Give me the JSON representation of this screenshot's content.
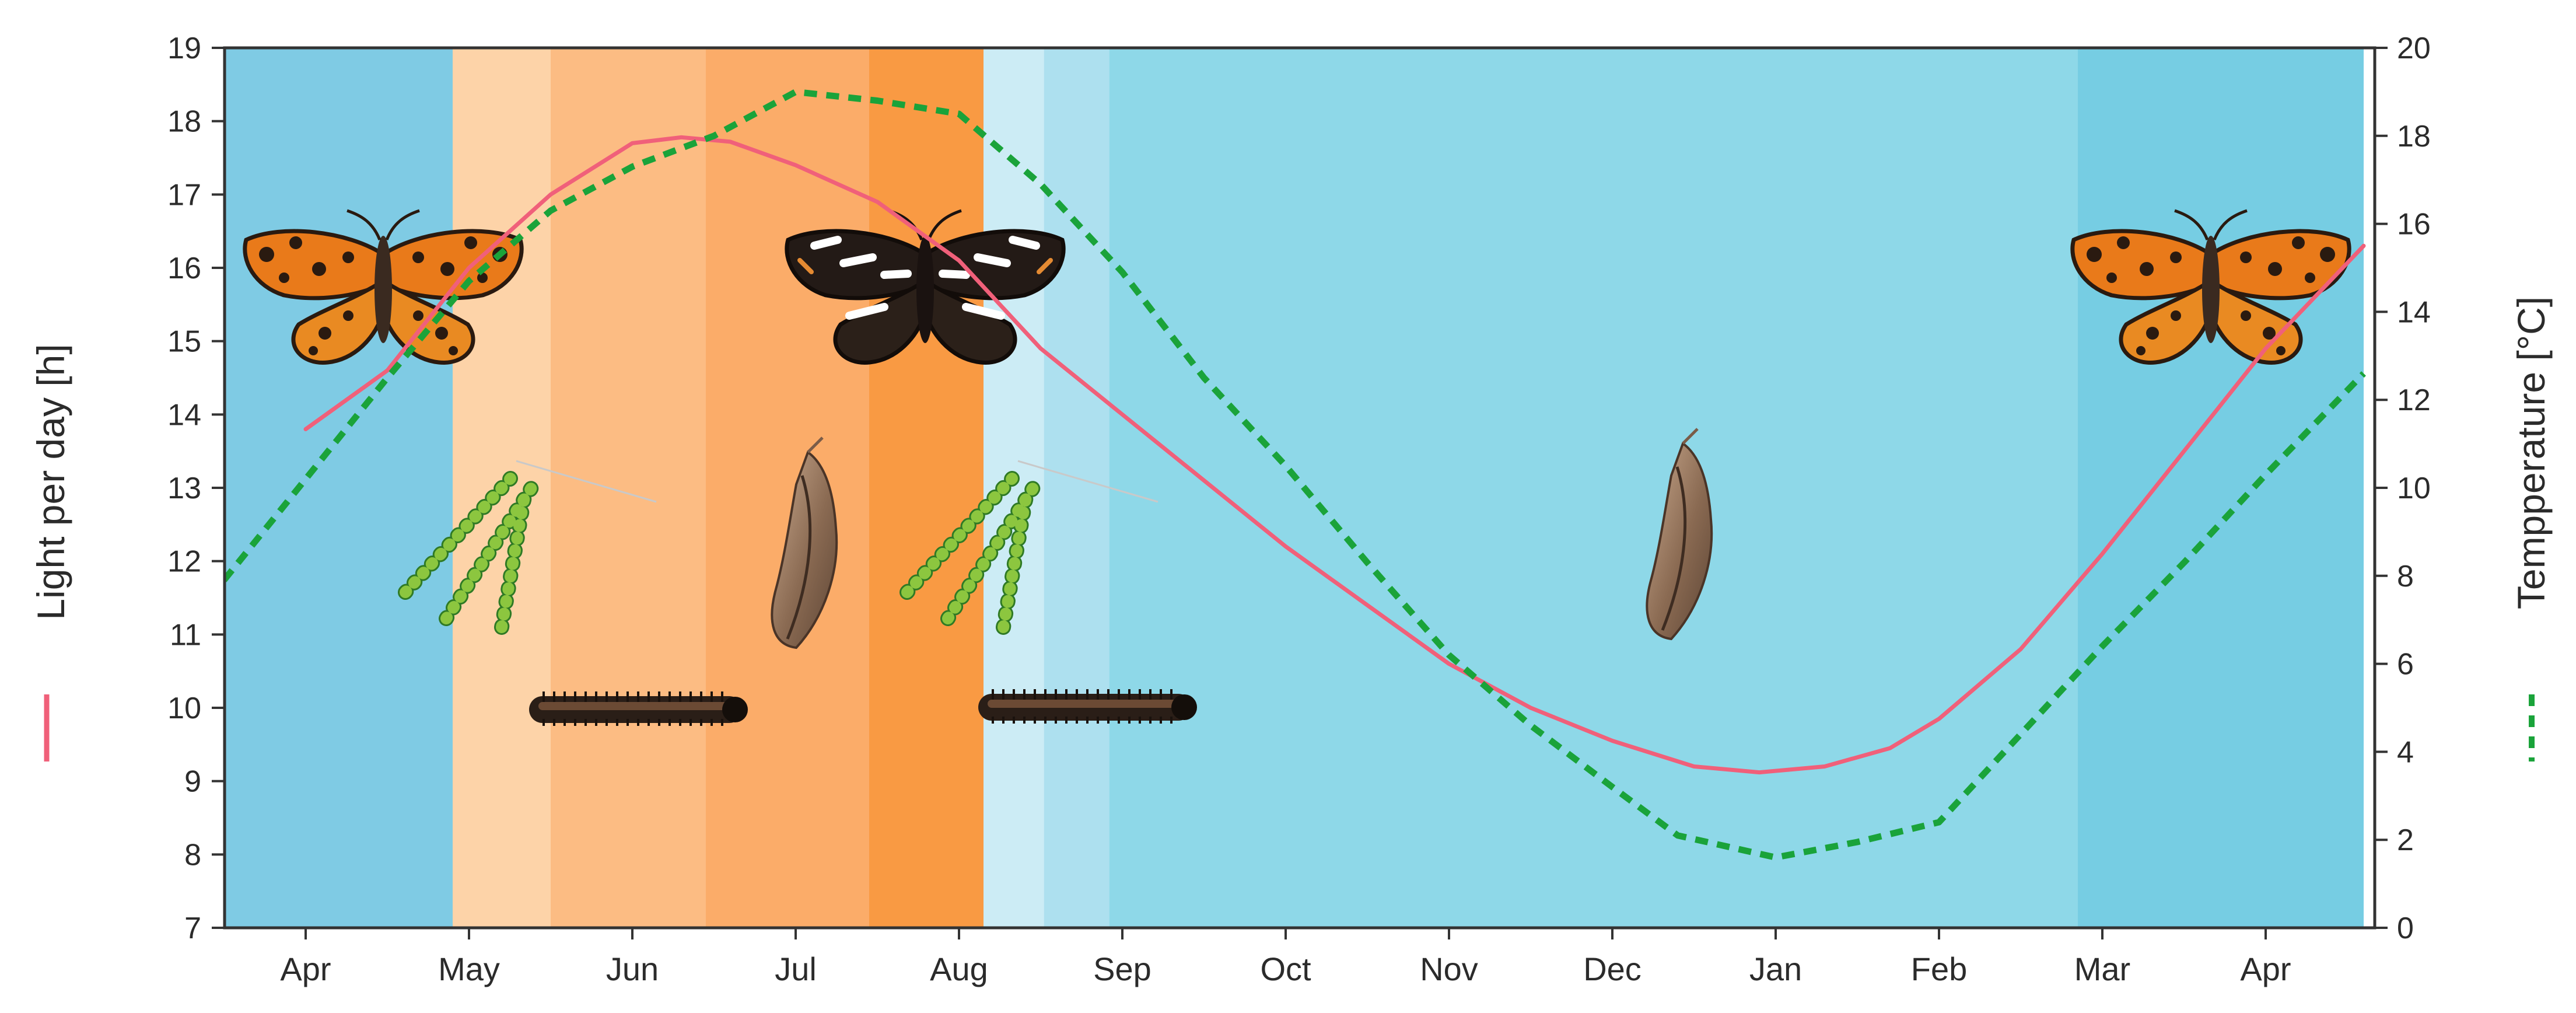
{
  "chart_data": {
    "type": "line",
    "x_categories": [
      "Apr",
      "May",
      "Jun",
      "Jul",
      "Aug",
      "Sep",
      "Oct",
      "Nov",
      "Dec",
      "Jan",
      "Feb",
      "Mar",
      "Apr"
    ],
    "ylabel": "Light per day [h]",
    "ylim": [
      7,
      19
    ],
    "yticks": [
      7,
      8,
      9,
      10,
      11,
      12,
      13,
      14,
      15,
      16,
      17,
      18,
      19
    ],
    "y2label": "Tempperature [°C]",
    "y2lim": [
      0,
      20
    ],
    "y2ticks": [
      0,
      2,
      4,
      6,
      8,
      10,
      12,
      14,
      16,
      18,
      20
    ],
    "series": [
      {
        "axis": "left",
        "color": "#f0607a",
        "style": "solid",
        "points": [
          {
            "x": 0.0,
            "y": 13.8
          },
          {
            "x": 0.5,
            "y": 14.6
          },
          {
            "x": 1.0,
            "y": 16.0
          },
          {
            "x": 1.5,
            "y": 17.0
          },
          {
            "x": 2.0,
            "y": 17.7
          },
          {
            "x": 2.3,
            "y": 17.78
          },
          {
            "x": 2.6,
            "y": 17.72
          },
          {
            "x": 3.0,
            "y": 17.4
          },
          {
            "x": 3.5,
            "y": 16.9
          },
          {
            "x": 4.0,
            "y": 16.1
          },
          {
            "x": 4.5,
            "y": 14.9
          },
          {
            "x": 5.0,
            "y": 14.0
          },
          {
            "x": 5.5,
            "y": 13.1
          },
          {
            "x": 6.0,
            "y": 12.2
          },
          {
            "x": 6.5,
            "y": 11.4
          },
          {
            "x": 7.0,
            "y": 10.6
          },
          {
            "x": 7.5,
            "y": 10.0
          },
          {
            "x": 8.0,
            "y": 9.55
          },
          {
            "x": 8.5,
            "y": 9.2
          },
          {
            "x": 8.9,
            "y": 9.12
          },
          {
            "x": 9.3,
            "y": 9.2
          },
          {
            "x": 9.7,
            "y": 9.45
          },
          {
            "x": 10.0,
            "y": 9.85
          },
          {
            "x": 10.5,
            "y": 10.8
          },
          {
            "x": 11.0,
            "y": 12.1
          },
          {
            "x": 11.5,
            "y": 13.5
          },
          {
            "x": 12.0,
            "y": 14.9
          },
          {
            "x": 12.6,
            "y": 16.3
          }
        ]
      },
      {
        "axis": "right",
        "color": "#1aa33a",
        "style": "dashed",
        "points": [
          {
            "x": -0.5,
            "y": 7.9
          },
          {
            "x": 0.0,
            "y": 10.2
          },
          {
            "x": 0.5,
            "y": 12.5
          },
          {
            "x": 1.0,
            "y": 14.7
          },
          {
            "x": 1.5,
            "y": 16.3
          },
          {
            "x": 2.0,
            "y": 17.3
          },
          {
            "x": 2.5,
            "y": 18.0
          },
          {
            "x": 3.0,
            "y": 19.0
          },
          {
            "x": 3.5,
            "y": 18.8
          },
          {
            "x": 4.0,
            "y": 18.5
          },
          {
            "x": 4.5,
            "y": 16.9
          },
          {
            "x": 5.0,
            "y": 14.9
          },
          {
            "x": 5.5,
            "y": 12.5
          },
          {
            "x": 6.0,
            "y": 10.5
          },
          {
            "x": 6.5,
            "y": 8.3
          },
          {
            "x": 7.0,
            "y": 6.2
          },
          {
            "x": 7.5,
            "y": 4.6
          },
          {
            "x": 8.0,
            "y": 3.2
          },
          {
            "x": 8.4,
            "y": 2.1
          },
          {
            "x": 9.0,
            "y": 1.6
          },
          {
            "x": 9.5,
            "y": 1.95
          },
          {
            "x": 10.0,
            "y": 2.4
          },
          {
            "x": 10.5,
            "y": 4.4
          },
          {
            "x": 11.0,
            "y": 6.4
          },
          {
            "x": 11.5,
            "y": 8.3
          },
          {
            "x": 12.0,
            "y": 10.3
          },
          {
            "x": 12.6,
            "y": 12.6
          }
        ]
      }
    ],
    "background_bands": [
      {
        "from": -0.5,
        "to": 0.9,
        "color": "#7fcbe4"
      },
      {
        "from": 0.9,
        "to": 1.5,
        "color": "#fdd3a8"
      },
      {
        "from": 1.5,
        "to": 2.45,
        "color": "#fcbc83"
      },
      {
        "from": 2.45,
        "to": 3.45,
        "color": "#fbac69"
      },
      {
        "from": 3.45,
        "to": 4.15,
        "color": "#f99a43"
      },
      {
        "from": 4.15,
        "to": 4.52,
        "color": "#ccecf5"
      },
      {
        "from": 4.52,
        "to": 4.92,
        "color": "#ade0ef"
      },
      {
        "from": 4.92,
        "to": 10.85,
        "color": "#8ed8e8"
      },
      {
        "from": 10.85,
        "to": 12.6,
        "color": "#76cde3"
      }
    ],
    "grid": false,
    "legend": "axis-titles"
  }
}
